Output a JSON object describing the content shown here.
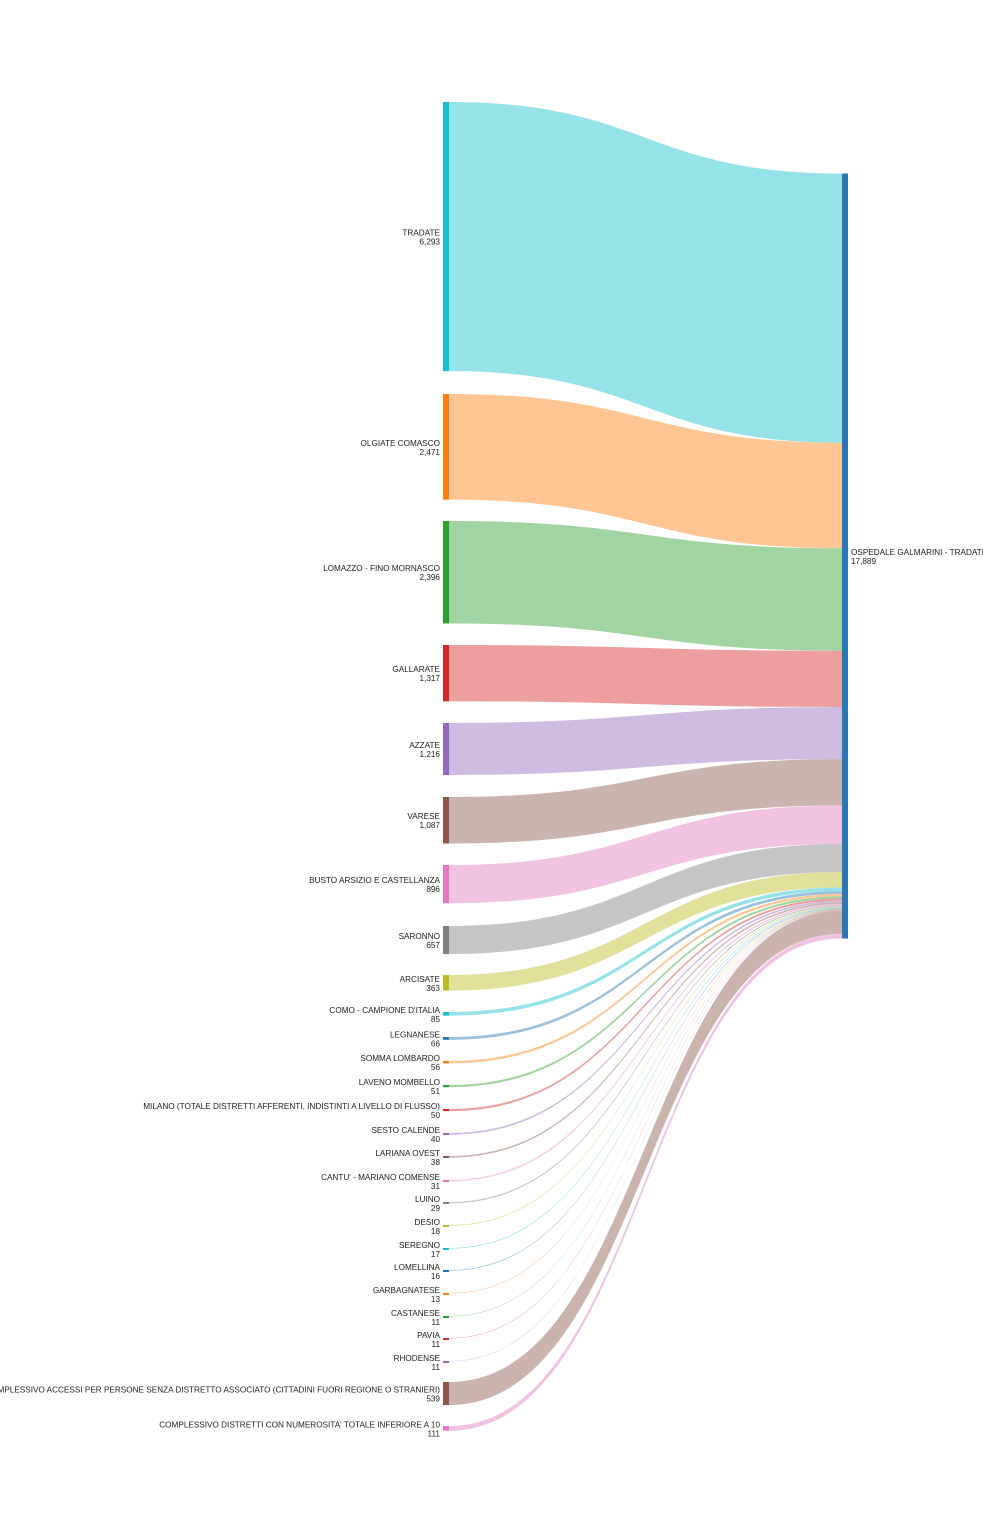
{
  "chart_data": {
    "type": "sankey",
    "title": "",
    "target": {
      "label": "OSPEDALE GALMARINI - TRADATE",
      "value_label": "17,889",
      "value": 17889,
      "color": "#2a77b4"
    },
    "sources": [
      {
        "label": "TRADATE",
        "value_label": "6,293",
        "value": 6293,
        "color": "#17becf"
      },
      {
        "label": "OLGIATE COMASCO",
        "value_label": "2,471",
        "value": 2471,
        "color": "#ff7f0e"
      },
      {
        "label": "LOMAZZO - FINO MORNASCO",
        "value_label": "2,396",
        "value": 2396,
        "color": "#2ca02c"
      },
      {
        "label": "GALLARATE",
        "value_label": "1,317",
        "value": 1317,
        "color": "#d62728"
      },
      {
        "label": "AZZATE",
        "value_label": "1,216",
        "value": 1216,
        "color": "#9467bd"
      },
      {
        "label": "VARESE",
        "value_label": "1,087",
        "value": 1087,
        "color": "#8c564b"
      },
      {
        "label": "BUSTO ARSIZIO E CASTELLANZA",
        "value_label": "896",
        "value": 896,
        "color": "#e377c2"
      },
      {
        "label": "SARONNO",
        "value_label": "657",
        "value": 657,
        "color": "#7f7f7f"
      },
      {
        "label": "ARCISATE",
        "value_label": "363",
        "value": 363,
        "color": "#bcbd22"
      },
      {
        "label": "COMO - CAMPIONE D'ITALIA",
        "value_label": "85",
        "value": 85,
        "color": "#17becf"
      },
      {
        "label": "LEGNANESE",
        "value_label": "66",
        "value": 66,
        "color": "#1f77b4"
      },
      {
        "label": "SOMMA LOMBARDO",
        "value_label": "56",
        "value": 56,
        "color": "#ff7f0e"
      },
      {
        "label": "LAVENO MOMBELLO",
        "value_label": "51",
        "value": 51,
        "color": "#2ca02c"
      },
      {
        "label": "MILANO (TOTALE DISTRETTI AFFERENTI, INDISTINTI A LIVELLO DI FLUSSO)",
        "value_label": "50",
        "value": 50,
        "color": "#d62728"
      },
      {
        "label": "SESTO CALENDE",
        "value_label": "40",
        "value": 40,
        "color": "#9467bd"
      },
      {
        "label": "LARIANA OVEST",
        "value_label": "38",
        "value": 38,
        "color": "#8c564b"
      },
      {
        "label": "CANTU' - MARIANO COMENSE",
        "value_label": "31",
        "value": 31,
        "color": "#e377c2"
      },
      {
        "label": "LUINO",
        "value_label": "29",
        "value": 29,
        "color": "#7f7f7f"
      },
      {
        "label": "DESIO",
        "value_label": "18",
        "value": 18,
        "color": "#bcbd22"
      },
      {
        "label": "SEREGNO",
        "value_label": "17",
        "value": 17,
        "color": "#17becf"
      },
      {
        "label": "LOMELLINA",
        "value_label": "16",
        "value": 16,
        "color": "#1f77b4"
      },
      {
        "label": "GARBAGNATESE",
        "value_label": "13",
        "value": 13,
        "color": "#ff7f0e"
      },
      {
        "label": "CASTANESE",
        "value_label": "11",
        "value": 11,
        "color": "#2ca02c"
      },
      {
        "label": "PAVIA",
        "value_label": "11",
        "value": 11,
        "color": "#d62728"
      },
      {
        "label": "RHODENSE",
        "value_label": "11",
        "value": 11,
        "color": "#9467bd"
      },
      {
        "label": "DATO COMPLESSIVO ACCESSI PER PERSONE SENZA DISTRETTO ASSOCIATO (CITTADINI FUORI REGIONE O STRANIERI)",
        "value_label": "539",
        "value": 539,
        "color": "#8c564b"
      },
      {
        "label": "COMPLESSIVO DISTRETTI CON NUMEROSITA' TOTALE INFERIORE A 10",
        "value_label": "111",
        "value": 111,
        "color": "#e377c2"
      }
    ]
  }
}
